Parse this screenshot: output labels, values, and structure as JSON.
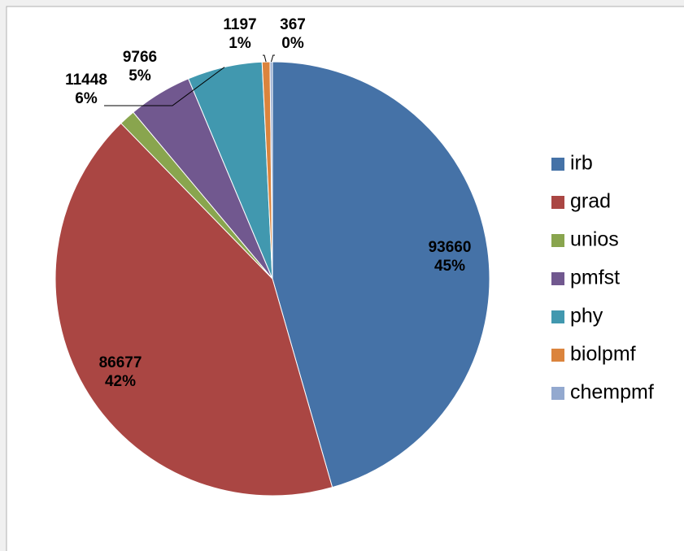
{
  "chart_data": {
    "type": "pie",
    "categories": [
      "irb",
      "grad",
      "unios",
      "pmfst",
      "phy",
      "biolpmf",
      "chempmf"
    ],
    "values": [
      93660,
      86677,
      2482,
      9766,
      11448,
      1197,
      367
    ],
    "percent_labels": [
      "45%",
      "42%",
      "1%",
      "5%",
      "6%",
      "1%",
      "0%"
    ],
    "colors": [
      "#4572a7",
      "#aa4643",
      "#89a54e",
      "#71588f",
      "#4198af",
      "#db843d",
      "#93a9cf"
    ],
    "legend": "right"
  }
}
